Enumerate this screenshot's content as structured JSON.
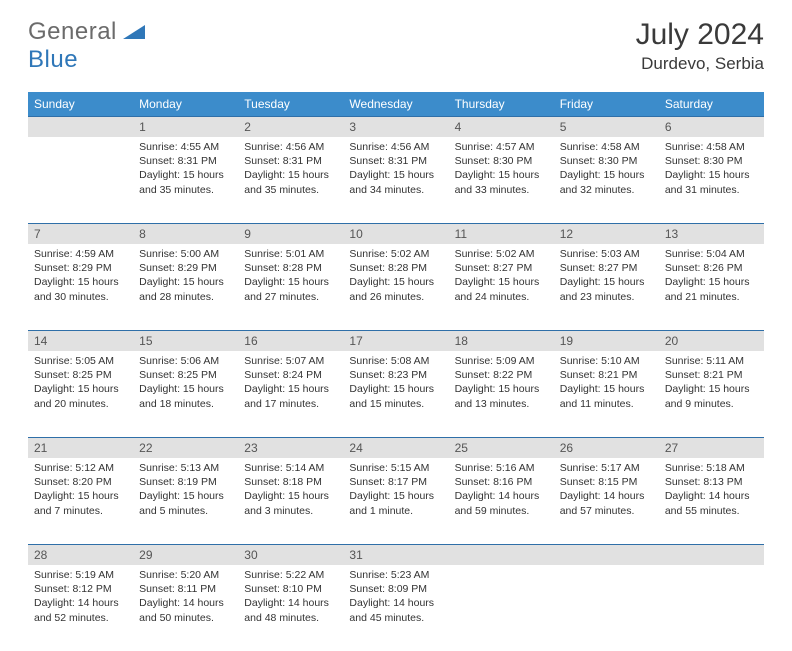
{
  "logo": {
    "general": "General",
    "blue": "Blue"
  },
  "title": "July 2024",
  "location": "Durdevo, Serbia",
  "colors": {
    "header_bg": "#3c8ccb",
    "daynum_bg": "#e1e1e1",
    "row_divider": "#2f6fa8",
    "logo_gray": "#6b6b6b",
    "logo_blue": "#2f77b8"
  },
  "weekdays": [
    "Sunday",
    "Monday",
    "Tuesday",
    "Wednesday",
    "Thursday",
    "Friday",
    "Saturday"
  ],
  "weeks": [
    [
      null,
      {
        "n": "1",
        "sr": "4:55 AM",
        "ss": "8:31 PM",
        "dl": "15 hours and 35 minutes."
      },
      {
        "n": "2",
        "sr": "4:56 AM",
        "ss": "8:31 PM",
        "dl": "15 hours and 35 minutes."
      },
      {
        "n": "3",
        "sr": "4:56 AM",
        "ss": "8:31 PM",
        "dl": "15 hours and 34 minutes."
      },
      {
        "n": "4",
        "sr": "4:57 AM",
        "ss": "8:30 PM",
        "dl": "15 hours and 33 minutes."
      },
      {
        "n": "5",
        "sr": "4:58 AM",
        "ss": "8:30 PM",
        "dl": "15 hours and 32 minutes."
      },
      {
        "n": "6",
        "sr": "4:58 AM",
        "ss": "8:30 PM",
        "dl": "15 hours and 31 minutes."
      }
    ],
    [
      {
        "n": "7",
        "sr": "4:59 AM",
        "ss": "8:29 PM",
        "dl": "15 hours and 30 minutes."
      },
      {
        "n": "8",
        "sr": "5:00 AM",
        "ss": "8:29 PM",
        "dl": "15 hours and 28 minutes."
      },
      {
        "n": "9",
        "sr": "5:01 AM",
        "ss": "8:28 PM",
        "dl": "15 hours and 27 minutes."
      },
      {
        "n": "10",
        "sr": "5:02 AM",
        "ss": "8:28 PM",
        "dl": "15 hours and 26 minutes."
      },
      {
        "n": "11",
        "sr": "5:02 AM",
        "ss": "8:27 PM",
        "dl": "15 hours and 24 minutes."
      },
      {
        "n": "12",
        "sr": "5:03 AM",
        "ss": "8:27 PM",
        "dl": "15 hours and 23 minutes."
      },
      {
        "n": "13",
        "sr": "5:04 AM",
        "ss": "8:26 PM",
        "dl": "15 hours and 21 minutes."
      }
    ],
    [
      {
        "n": "14",
        "sr": "5:05 AM",
        "ss": "8:25 PM",
        "dl": "15 hours and 20 minutes."
      },
      {
        "n": "15",
        "sr": "5:06 AM",
        "ss": "8:25 PM",
        "dl": "15 hours and 18 minutes."
      },
      {
        "n": "16",
        "sr": "5:07 AM",
        "ss": "8:24 PM",
        "dl": "15 hours and 17 minutes."
      },
      {
        "n": "17",
        "sr": "5:08 AM",
        "ss": "8:23 PM",
        "dl": "15 hours and 15 minutes."
      },
      {
        "n": "18",
        "sr": "5:09 AM",
        "ss": "8:22 PM",
        "dl": "15 hours and 13 minutes."
      },
      {
        "n": "19",
        "sr": "5:10 AM",
        "ss": "8:21 PM",
        "dl": "15 hours and 11 minutes."
      },
      {
        "n": "20",
        "sr": "5:11 AM",
        "ss": "8:21 PM",
        "dl": "15 hours and 9 minutes."
      }
    ],
    [
      {
        "n": "21",
        "sr": "5:12 AM",
        "ss": "8:20 PM",
        "dl": "15 hours and 7 minutes."
      },
      {
        "n": "22",
        "sr": "5:13 AM",
        "ss": "8:19 PM",
        "dl": "15 hours and 5 minutes."
      },
      {
        "n": "23",
        "sr": "5:14 AM",
        "ss": "8:18 PM",
        "dl": "15 hours and 3 minutes."
      },
      {
        "n": "24",
        "sr": "5:15 AM",
        "ss": "8:17 PM",
        "dl": "15 hours and 1 minute."
      },
      {
        "n": "25",
        "sr": "5:16 AM",
        "ss": "8:16 PM",
        "dl": "14 hours and 59 minutes."
      },
      {
        "n": "26",
        "sr": "5:17 AM",
        "ss": "8:15 PM",
        "dl": "14 hours and 57 minutes."
      },
      {
        "n": "27",
        "sr": "5:18 AM",
        "ss": "8:13 PM",
        "dl": "14 hours and 55 minutes."
      }
    ],
    [
      {
        "n": "28",
        "sr": "5:19 AM",
        "ss": "8:12 PM",
        "dl": "14 hours and 52 minutes."
      },
      {
        "n": "29",
        "sr": "5:20 AM",
        "ss": "8:11 PM",
        "dl": "14 hours and 50 minutes."
      },
      {
        "n": "30",
        "sr": "5:22 AM",
        "ss": "8:10 PM",
        "dl": "14 hours and 48 minutes."
      },
      {
        "n": "31",
        "sr": "5:23 AM",
        "ss": "8:09 PM",
        "dl": "14 hours and 45 minutes."
      },
      null,
      null,
      null
    ]
  ],
  "labels": {
    "sunrise": "Sunrise:",
    "sunset": "Sunset:",
    "daylight": "Daylight:"
  }
}
